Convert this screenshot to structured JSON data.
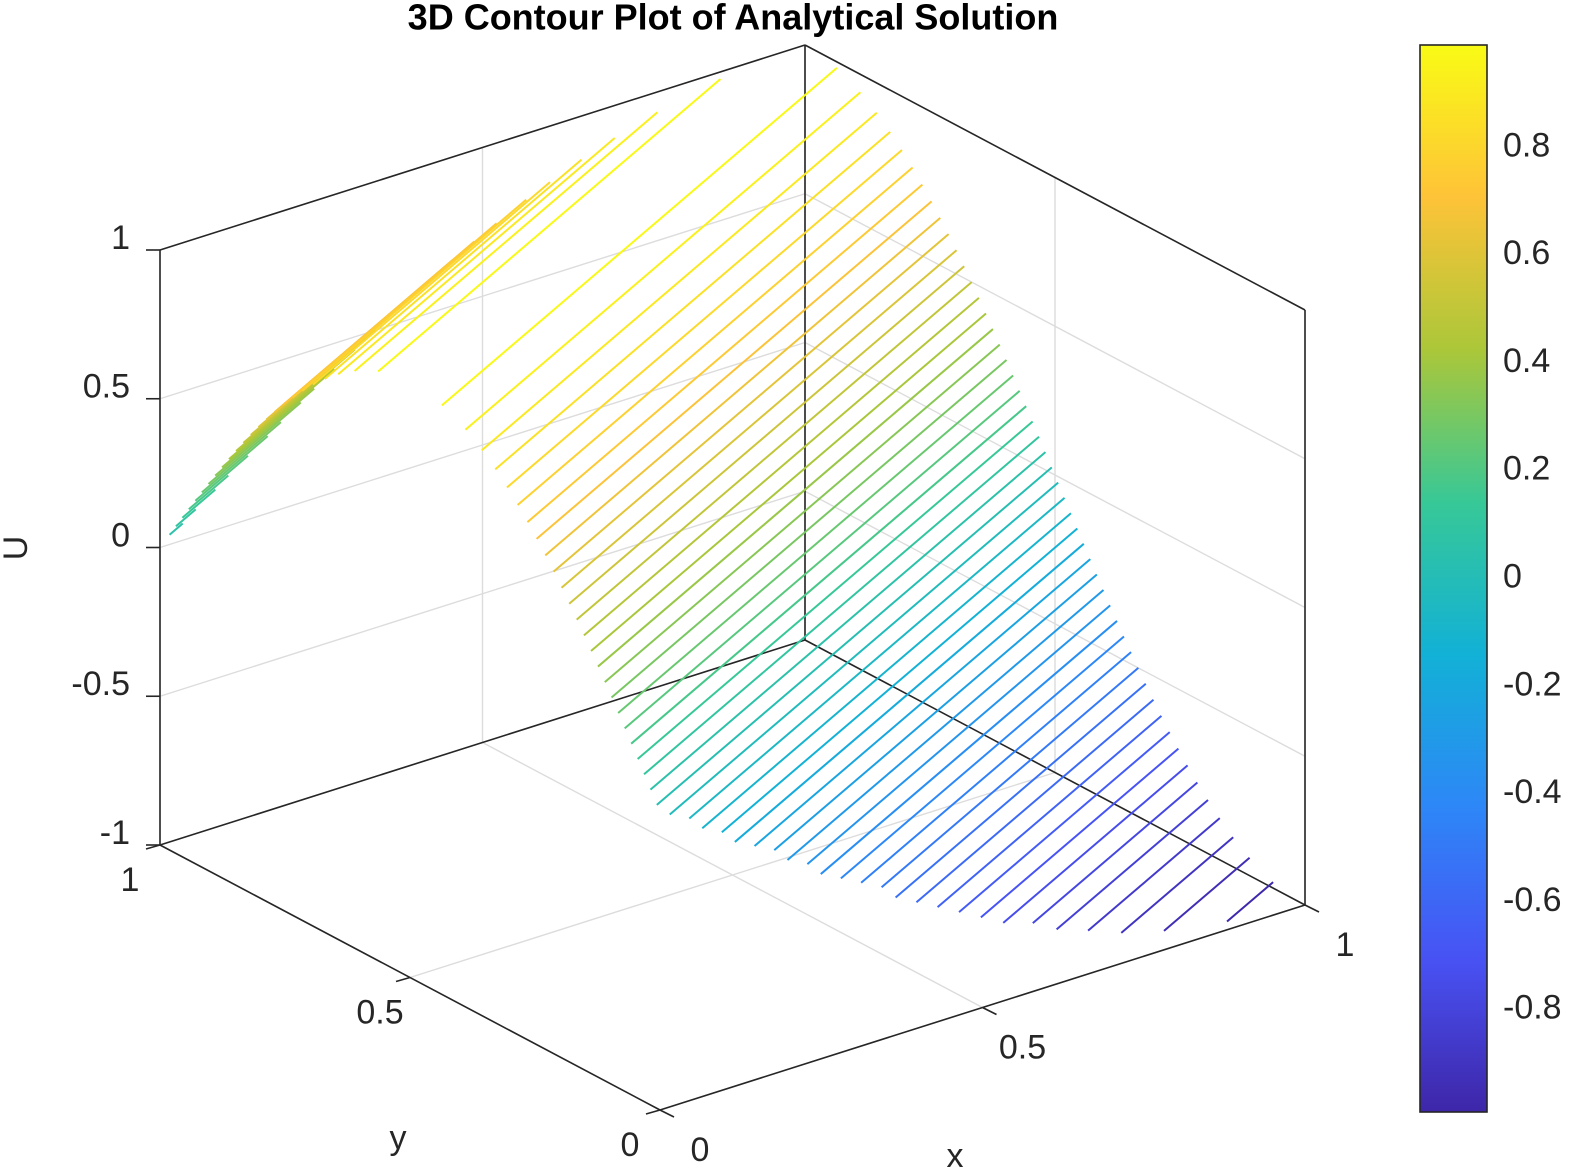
{
  "chart_data": {
    "type": "contour3d",
    "title": "3D Contour Plot of Analytical Solution",
    "x_label": "x",
    "y_label": "y",
    "z_label": "U",
    "xlim": [
      0,
      1
    ],
    "xticks": [
      0,
      0.5,
      1
    ],
    "ylim": [
      0,
      1
    ],
    "yticks": [
      0,
      0.5,
      1
    ],
    "zlim": [
      -1,
      1
    ],
    "zticks": [
      -1,
      -0.5,
      0,
      0.5,
      1
    ],
    "grid": true,
    "levels": [
      -0.98,
      -0.94,
      -0.9,
      -0.86,
      -0.82,
      -0.78,
      -0.74,
      -0.7,
      -0.66,
      -0.62,
      -0.58,
      -0.54,
      -0.5,
      -0.46,
      -0.42,
      -0.38,
      -0.34,
      -0.3,
      -0.26,
      -0.22,
      -0.18,
      -0.14,
      -0.1,
      -0.06,
      -0.02,
      0.02,
      0.06,
      0.1,
      0.14,
      0.18,
      0.22,
      0.26,
      0.3,
      0.34,
      0.38,
      0.42,
      0.46,
      0.5,
      0.54,
      0.58,
      0.62,
      0.66,
      0.7,
      0.74,
      0.78,
      0.82,
      0.86,
      0.9,
      0.94,
      0.98
    ],
    "colorbar": {
      "clim": [
        -0.99,
        0.99
      ],
      "ticks": [
        -0.8,
        -0.6,
        -0.4,
        -0.2,
        0,
        0.2,
        0.4,
        0.6,
        0.8
      ]
    }
  }
}
